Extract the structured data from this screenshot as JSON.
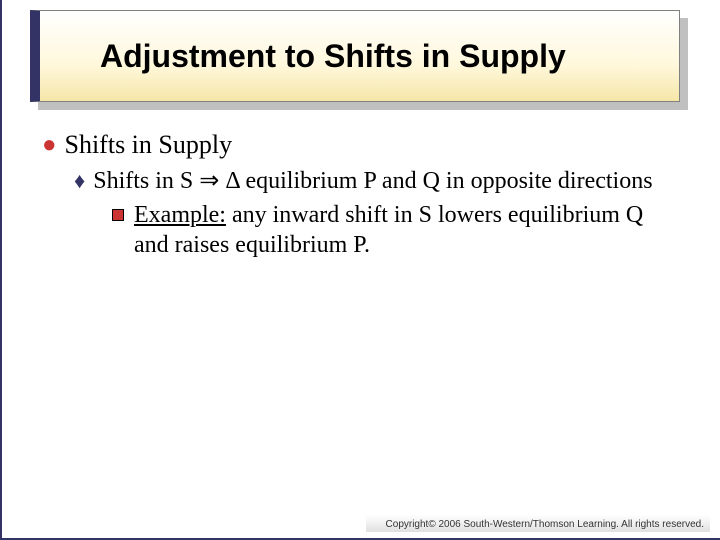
{
  "title": "Adjustment to Shifts in Supply",
  "b1": "Shifts in Supply",
  "b2": "Shifts in S  ⇒  Δ equilibrium P and Q in opposite directions",
  "b3_label": "Example:",
  "b3_rest": " any inward shift in S lowers equilibrium Q and raises equilibrium P.",
  "footer": "Copyright© 2006 South-Western/Thomson Learning. All rights reserved."
}
